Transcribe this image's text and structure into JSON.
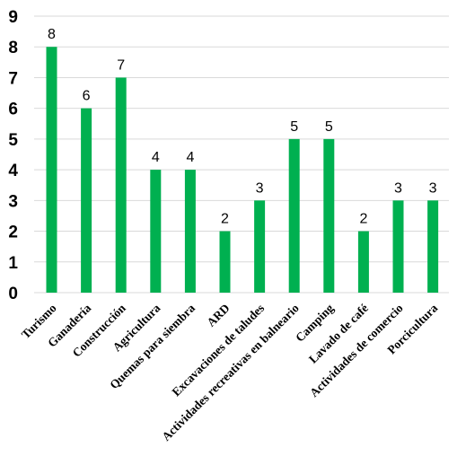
{
  "chart_data": {
    "type": "bar",
    "title": "",
    "xlabel": "",
    "ylabel": "",
    "categories": [
      "Turismo",
      "Ganadería",
      "Construcción",
      "Agricultura",
      "Quemas para siembra",
      "ARD",
      "Excavaciones de taludes",
      "Actividades recreativas en balneario",
      "Camping",
      "Lavado de café",
      "Actividades de comercio",
      "Porcicultura"
    ],
    "values": [
      8,
      6,
      7,
      4,
      4,
      2,
      3,
      5,
      5,
      2,
      3,
      3
    ],
    "ylim": [
      0,
      9
    ],
    "yticks": [
      0,
      1,
      2,
      3,
      4,
      5,
      6,
      7,
      8,
      9
    ],
    "grid": true,
    "legend": "none",
    "bar_color": "#00b050",
    "data_labels": true
  }
}
